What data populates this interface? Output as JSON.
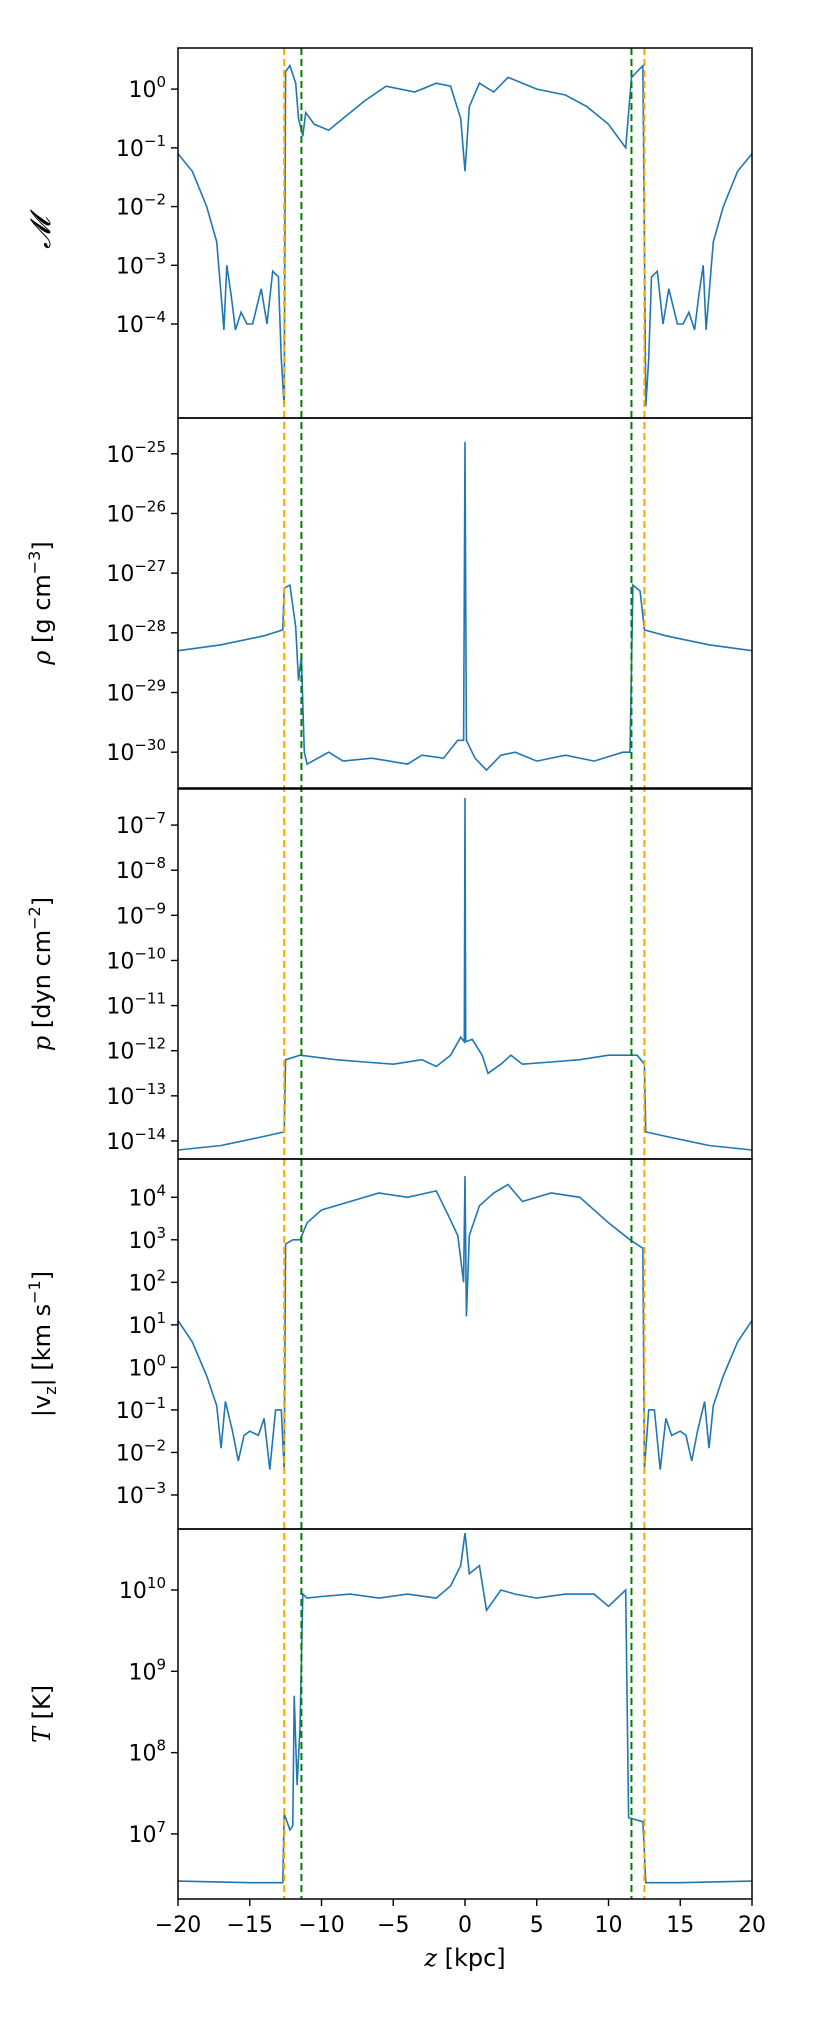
{
  "chart_data": {
    "type": "line",
    "series_color": "#1f77b4",
    "shared_x": {
      "label_var": "z",
      "label_unit": " [kpc]",
      "lim": [
        -20,
        20
      ],
      "ticks": [
        -20,
        -15,
        -10,
        -5,
        0,
        5,
        10,
        15,
        20
      ],
      "tick_labels": [
        "−20",
        "−15",
        "−10",
        "−5",
        "0",
        "5",
        "10",
        "15",
        "20"
      ]
    },
    "vlines": [
      {
        "x": -12.6,
        "color": "#ffa500",
        "style": "dashed"
      },
      {
        "x": -11.4,
        "color": "#008000",
        "style": "dashed"
      },
      {
        "x": 11.6,
        "color": "#008000",
        "style": "dashed"
      },
      {
        "x": 12.5,
        "color": "#ffa500",
        "style": "dashed"
      }
    ],
    "panels": [
      {
        "id": "mach",
        "ylabel": "𝓜",
        "yscale": "log",
        "ylim_log10": [
          -5.6,
          0.7
        ],
        "yticks_log10": [
          -4,
          -3,
          -2,
          -1,
          0
        ],
        "ytick_labels": [
          "10−4",
          "10−3",
          "10−2",
          "10−1",
          "100"
        ],
        "points": [
          [
            -20,
            -1.1
          ],
          [
            -19,
            -1.4
          ],
          [
            -18,
            -2
          ],
          [
            -17.3,
            -2.6
          ],
          [
            -17,
            -3.5
          ],
          [
            -16.8,
            -4.1
          ],
          [
            -16.6,
            -3
          ],
          [
            -16.3,
            -3.5
          ],
          [
            -16,
            -4.1
          ],
          [
            -15.6,
            -3.8
          ],
          [
            -15.2,
            -4
          ],
          [
            -14.8,
            -4
          ],
          [
            -14.2,
            -3.4
          ],
          [
            -13.8,
            -4
          ],
          [
            -13.4,
            -3.1
          ],
          [
            -13,
            -3.2
          ],
          [
            -12.8,
            -4.6
          ],
          [
            -12.6,
            -5.4
          ],
          [
            -12.5,
            0.3
          ],
          [
            -12.2,
            0.4
          ],
          [
            -11.8,
            0.1
          ],
          [
            -11.6,
            -0.5
          ],
          [
            -11.3,
            -0.8
          ],
          [
            -11.1,
            -0.4
          ],
          [
            -10.5,
            -0.6
          ],
          [
            -9.5,
            -0.7
          ],
          [
            -8.5,
            -0.5
          ],
          [
            -7,
            -0.2
          ],
          [
            -5.5,
            0.05
          ],
          [
            -3.5,
            -0.05
          ],
          [
            -2,
            0.1
          ],
          [
            -1,
            0.05
          ],
          [
            -0.3,
            -0.5
          ],
          [
            0,
            -1.4
          ],
          [
            0.3,
            -0.3
          ],
          [
            1,
            0.1
          ],
          [
            2,
            -0.05
          ],
          [
            3,
            0.2
          ],
          [
            3.5,
            0.15
          ],
          [
            5,
            0
          ],
          [
            7,
            -0.1
          ],
          [
            8.5,
            -0.3
          ],
          [
            10,
            -0.6
          ],
          [
            11.2,
            -1
          ],
          [
            11.6,
            0.2
          ],
          [
            12,
            0.3
          ],
          [
            12.4,
            0.4
          ],
          [
            12.6,
            -5.4
          ],
          [
            12.8,
            -4.6
          ],
          [
            13,
            -3.2
          ],
          [
            13.4,
            -3.1
          ],
          [
            13.8,
            -4
          ],
          [
            14.2,
            -3.4
          ],
          [
            14.8,
            -4
          ],
          [
            15.2,
            -4
          ],
          [
            15.6,
            -3.8
          ],
          [
            16,
            -4.1
          ],
          [
            16.3,
            -3.5
          ],
          [
            16.6,
            -3
          ],
          [
            16.8,
            -4.1
          ],
          [
            17,
            -3.5
          ],
          [
            17.3,
            -2.6
          ],
          [
            18,
            -2
          ],
          [
            19,
            -1.4
          ],
          [
            20,
            -1.1
          ]
        ]
      },
      {
        "id": "density",
        "ylabel": "ρ [g cm−3]",
        "yscale": "log",
        "ylim_log10": [
          -30.6,
          -24.4
        ],
        "yticks_log10": [
          -30,
          -29,
          -28,
          -27,
          -26,
          -25
        ],
        "ytick_labels": [
          "10−30",
          "10−29",
          "10−28",
          "10−27",
          "10−26",
          "10−25"
        ],
        "points": [
          [
            -20,
            -28.3
          ],
          [
            -17,
            -28.2
          ],
          [
            -14,
            -28.05
          ],
          [
            -12.7,
            -27.95
          ],
          [
            -12.6,
            -27.25
          ],
          [
            -12.2,
            -27.2
          ],
          [
            -11.8,
            -27.9
          ],
          [
            -11.6,
            -28.8
          ],
          [
            -11.4,
            -28.4
          ],
          [
            -11.2,
            -30
          ],
          [
            -11,
            -30.2
          ],
          [
            -9.5,
            -30
          ],
          [
            -8.5,
            -30.15
          ],
          [
            -6.5,
            -30.1
          ],
          [
            -4,
            -30.2
          ],
          [
            -3,
            -30.05
          ],
          [
            -1.5,
            -30.1
          ],
          [
            -0.5,
            -29.8
          ],
          [
            -0.1,
            -29.8
          ],
          [
            0,
            -24.8
          ],
          [
            0.1,
            -29.8
          ],
          [
            0.7,
            -30.1
          ],
          [
            1.5,
            -30.3
          ],
          [
            2.5,
            -30.05
          ],
          [
            3.5,
            -30
          ],
          [
            5,
            -30.15
          ],
          [
            7,
            -30.05
          ],
          [
            9,
            -30.15
          ],
          [
            11,
            -30
          ],
          [
            11.5,
            -30
          ],
          [
            11.7,
            -27.2
          ],
          [
            12.2,
            -27.3
          ],
          [
            12.5,
            -27.95
          ],
          [
            14,
            -28.05
          ],
          [
            17,
            -28.2
          ],
          [
            20,
            -28.3
          ]
        ]
      },
      {
        "id": "pressure",
        "ylabel": "p [dyn cm−2]",
        "yscale": "log",
        "ylim_log10": [
          -14.4,
          -6.2
        ],
        "yticks_log10": [
          -14,
          -13,
          -12,
          -11,
          -10,
          -9,
          -8,
          -7
        ],
        "ytick_labels": [
          "10−14",
          "10−13",
          "10−12",
          "10−11",
          "10−10",
          "10−9",
          "10−8",
          "10−7"
        ],
        "points": [
          [
            -20,
            -14.2
          ],
          [
            -17,
            -14.1
          ],
          [
            -14,
            -13.9
          ],
          [
            -12.6,
            -13.8
          ],
          [
            -12.5,
            -12.2
          ],
          [
            -11.5,
            -12.1
          ],
          [
            -9,
            -12.2
          ],
          [
            -7,
            -12.25
          ],
          [
            -5,
            -12.3
          ],
          [
            -3,
            -12.2
          ],
          [
            -2,
            -12.35
          ],
          [
            -1,
            -12.1
          ],
          [
            -0.3,
            -11.7
          ],
          [
            -0.05,
            -11.8
          ],
          [
            0,
            -6.4
          ],
          [
            0.05,
            -11.8
          ],
          [
            0.5,
            -11.75
          ],
          [
            1.2,
            -12.1
          ],
          [
            1.6,
            -12.5
          ],
          [
            2.5,
            -12.3
          ],
          [
            3.2,
            -12.1
          ],
          [
            4,
            -12.3
          ],
          [
            6,
            -12.25
          ],
          [
            8,
            -12.2
          ],
          [
            10,
            -12.1
          ],
          [
            12,
            -12.1
          ],
          [
            12.5,
            -12.3
          ],
          [
            12.6,
            -13.8
          ],
          [
            14,
            -13.9
          ],
          [
            17,
            -14.1
          ],
          [
            20,
            -14.2
          ]
        ]
      },
      {
        "id": "velocity",
        "ylabel": "|vz| [km s−1]",
        "yscale": "log",
        "ylim_log10": [
          -3.8,
          4.9
        ],
        "yticks_log10": [
          -3,
          -2,
          -1,
          0,
          1,
          2,
          3,
          4
        ],
        "ytick_labels": [
          "10−3",
          "10−2",
          "10−1",
          "100",
          "101",
          "102",
          "103",
          "104"
        ],
        "points": [
          [
            -20,
            1.1
          ],
          [
            -19,
            0.6
          ],
          [
            -18,
            -0.2
          ],
          [
            -17.3,
            -0.9
          ],
          [
            -17,
            -1.9
          ],
          [
            -16.7,
            -0.8
          ],
          [
            -16.2,
            -1.5
          ],
          [
            -15.8,
            -2.2
          ],
          [
            -15.4,
            -1.6
          ],
          [
            -15,
            -1.5
          ],
          [
            -14.4,
            -1.6
          ],
          [
            -14,
            -1.2
          ],
          [
            -13.6,
            -2.4
          ],
          [
            -13.2,
            -1
          ],
          [
            -12.8,
            -1
          ],
          [
            -12.6,
            -2.4
          ],
          [
            -12.5,
            2.9
          ],
          [
            -12,
            3
          ],
          [
            -11.5,
            3
          ],
          [
            -11,
            3.4
          ],
          [
            -10,
            3.7
          ],
          [
            -8,
            3.9
          ],
          [
            -6,
            4.1
          ],
          [
            -4,
            4
          ],
          [
            -2,
            4.15
          ],
          [
            -1.2,
            3.6
          ],
          [
            -0.5,
            3.1
          ],
          [
            -0.1,
            2
          ],
          [
            0,
            4.5
          ],
          [
            0.1,
            1.2
          ],
          [
            0.3,
            3.1
          ],
          [
            1,
            3.8
          ],
          [
            2,
            4.1
          ],
          [
            3,
            4.3
          ],
          [
            4,
            3.9
          ],
          [
            6,
            4.1
          ],
          [
            8,
            4
          ],
          [
            10,
            3.4
          ],
          [
            11.5,
            3
          ],
          [
            12.4,
            2.8
          ],
          [
            12.5,
            -2.4
          ],
          [
            12.8,
            -1
          ],
          [
            13.2,
            -1
          ],
          [
            13.6,
            -2.4
          ],
          [
            14,
            -1.2
          ],
          [
            14.4,
            -1.6
          ],
          [
            15,
            -1.5
          ],
          [
            15.4,
            -1.6
          ],
          [
            15.8,
            -2.2
          ],
          [
            16.2,
            -1.5
          ],
          [
            16.7,
            -0.8
          ],
          [
            17,
            -1.9
          ],
          [
            17.3,
            -0.9
          ],
          [
            18,
            -0.2
          ],
          [
            19,
            0.6
          ],
          [
            20,
            1.1
          ]
        ]
      },
      {
        "id": "temperature",
        "ylabel": "T [K]",
        "yscale": "log",
        "ylim_log10": [
          6.2,
          10.75
        ],
        "yticks_log10": [
          7,
          8,
          9,
          10
        ],
        "ytick_labels": [
          "107",
          "108",
          "109",
          "1010"
        ],
        "points": [
          [
            -20,
            6.42
          ],
          [
            -15,
            6.4
          ],
          [
            -12.7,
            6.4
          ],
          [
            -12.6,
            7.25
          ],
          [
            -12.2,
            7.05
          ],
          [
            -12,
            7.1
          ],
          [
            -11.9,
            8.7
          ],
          [
            -11.7,
            7.6
          ],
          [
            -11.5,
            8.3
          ],
          [
            -11.3,
            9.95
          ],
          [
            -11,
            9.9
          ],
          [
            -10,
            9.92
          ],
          [
            -8,
            9.95
          ],
          [
            -6,
            9.9
          ],
          [
            -4,
            9.95
          ],
          [
            -2,
            9.9
          ],
          [
            -1,
            10.05
          ],
          [
            -0.3,
            10.3
          ],
          [
            0,
            10.7
          ],
          [
            0.3,
            10.2
          ],
          [
            1,
            10.3
          ],
          [
            1.5,
            9.75
          ],
          [
            2.5,
            10
          ],
          [
            3.5,
            9.95
          ],
          [
            5,
            9.9
          ],
          [
            7,
            9.95
          ],
          [
            9,
            9.95
          ],
          [
            10,
            9.8
          ],
          [
            11.2,
            10
          ],
          [
            11.4,
            7.2
          ],
          [
            12.4,
            7.15
          ],
          [
            12.6,
            6.4
          ],
          [
            15,
            6.4
          ],
          [
            20,
            6.42
          ]
        ]
      }
    ]
  }
}
